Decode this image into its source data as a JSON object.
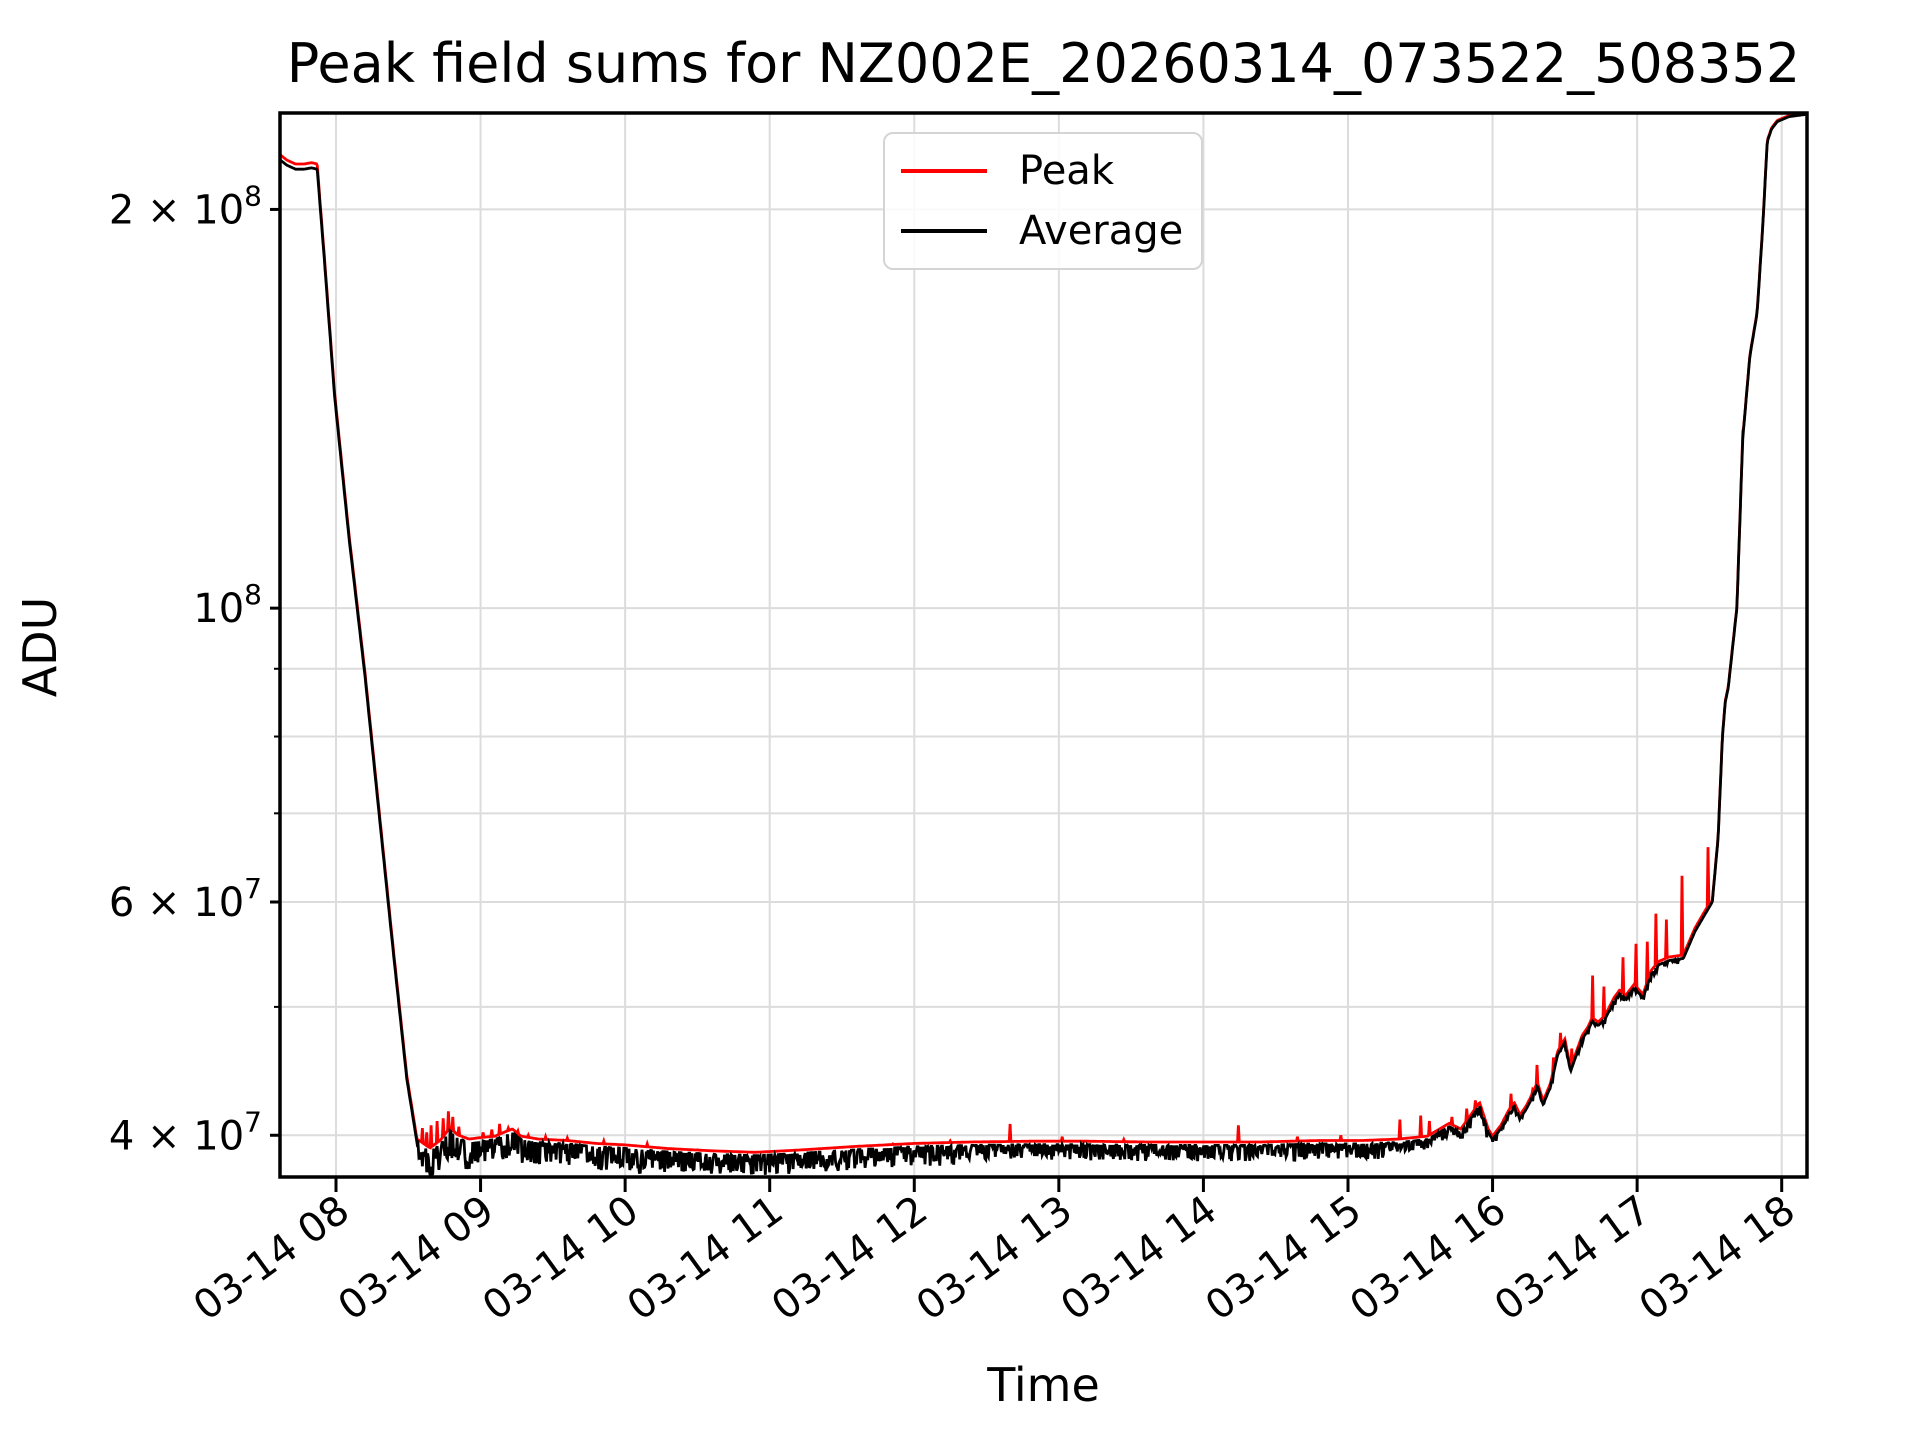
{
  "title": "Peak field sums for NZ002E_20260314_073522_508352",
  "xlabel": "Time",
  "ylabel": "ADU",
  "legend": {
    "entries": [
      {
        "label": "Peak",
        "color": "#ff0000"
      },
      {
        "label": "Average",
        "color": "#000000"
      }
    ]
  },
  "colors": {
    "peak": "#ff0000",
    "average": "#000000",
    "grid": "#dcdcdc",
    "spine": "#000000",
    "background": "#ffffff"
  },
  "chart_data": {
    "type": "line",
    "title": "Peak field sums for NZ002E_20260314_073522_508352",
    "xlabel": "Time",
    "ylabel": "ADU",
    "y_scale": "log",
    "grid": true,
    "legend_position": "upper center",
    "xlim": [
      7.6127,
      18.175
    ],
    "ylim": [
      37200000.0,
      236500000.0
    ],
    "x_ticks": [
      {
        "t": 8,
        "label": "03-14 08"
      },
      {
        "t": 9,
        "label": "03-14 09"
      },
      {
        "t": 10,
        "label": "03-14 10"
      },
      {
        "t": 11,
        "label": "03-14 11"
      },
      {
        "t": 12,
        "label": "03-14 12"
      },
      {
        "t": 13,
        "label": "03-14 13"
      },
      {
        "t": 14,
        "label": "03-14 14"
      },
      {
        "t": 15,
        "label": "03-14 15"
      },
      {
        "t": 16,
        "label": "03-14 16"
      },
      {
        "t": 17,
        "label": "03-14 17"
      },
      {
        "t": 18,
        "label": "03-14 18"
      }
    ],
    "y_ticks": [
      {
        "v": 40000000.0,
        "base": "4 × 10",
        "exp": "7"
      },
      {
        "v": 50000000.0,
        "base": null,
        "exp": null
      },
      {
        "v": 60000000.0,
        "base": "6 × 10",
        "exp": "7"
      },
      {
        "v": 70000000.0,
        "base": null,
        "exp": null
      },
      {
        "v": 80000000.0,
        "base": null,
        "exp": null
      },
      {
        "v": 90000000.0,
        "base": null,
        "exp": null
      },
      {
        "v": 100000000.0,
        "base": "10",
        "exp": "8"
      },
      {
        "v": 200000000.0,
        "base": "2 × 10",
        "exp": "8"
      }
    ],
    "series": [
      {
        "name": "Peak",
        "color": "#ff0000"
      },
      {
        "name": "Average",
        "color": "#000000"
      }
    ],
    "average_anchors": [
      [
        7.613,
        218000000.0
      ],
      [
        7.66,
        216000000.0
      ],
      [
        7.72,
        214500000.0
      ],
      [
        7.78,
        214500000.0
      ],
      [
        7.83,
        215000000.0
      ],
      [
        7.87,
        214500000.0
      ],
      [
        7.92,
        183000000.0
      ],
      [
        7.99,
        144600000.0
      ],
      [
        8.09,
        113000000.0
      ],
      [
        8.2,
        89000000.0
      ],
      [
        8.3,
        69600000.0
      ],
      [
        8.4,
        54500000.0
      ],
      [
        8.49,
        44100000.0
      ],
      [
        8.56,
        39500000.0
      ],
      [
        8.65,
        38900000.0
      ],
      [
        8.72,
        39400000.0
      ],
      [
        8.79,
        40300000.0
      ],
      [
        8.84,
        39800000.0
      ],
      [
        8.92,
        39500000.0
      ],
      [
        9.0,
        39600000.0
      ],
      [
        9.1,
        39700000.0
      ],
      [
        9.17,
        40000000.0
      ],
      [
        9.22,
        40200000.0
      ],
      [
        9.28,
        39700000.0
      ],
      [
        9.4,
        39500000.0
      ],
      [
        9.6,
        39400000.0
      ],
      [
        9.8,
        39200000.0
      ],
      [
        10.0,
        39100000.0
      ],
      [
        10.3,
        38850000.0
      ],
      [
        10.6,
        38700000.0
      ],
      [
        10.9,
        38600000.0
      ],
      [
        11.2,
        38750000.0
      ],
      [
        11.6,
        39000000.0
      ],
      [
        12.0,
        39200000.0
      ],
      [
        12.4,
        39300000.0
      ],
      [
        12.8,
        39350000.0
      ],
      [
        13.2,
        39350000.0
      ],
      [
        13.6,
        39300000.0
      ],
      [
        14.0,
        39300000.0
      ],
      [
        14.4,
        39300000.0
      ],
      [
        14.8,
        39400000.0
      ],
      [
        15.1,
        39400000.0
      ],
      [
        15.35,
        39500000.0
      ],
      [
        15.55,
        39700000.0
      ],
      [
        15.7,
        40600000.0
      ],
      [
        15.78,
        40200000.0
      ],
      [
        15.85,
        41200000.0
      ],
      [
        15.91,
        42100000.0
      ],
      [
        15.97,
        40200000.0
      ],
      [
        16.0,
        39700000.0
      ],
      [
        16.06,
        40500000.0
      ],
      [
        16.11,
        41500000.0
      ],
      [
        16.15,
        42100000.0
      ],
      [
        16.19,
        41200000.0
      ],
      [
        16.23,
        41800000.0
      ],
      [
        16.26,
        42400000.0
      ],
      [
        16.31,
        43600000.0
      ],
      [
        16.35,
        42200000.0
      ],
      [
        16.4,
        43500000.0
      ],
      [
        16.45,
        46000000.0
      ],
      [
        16.5,
        47000000.0
      ],
      [
        16.54,
        44700000.0
      ],
      [
        16.58,
        46000000.0
      ],
      [
        16.62,
        47300000.0
      ],
      [
        16.66,
        48000000.0
      ],
      [
        16.69,
        48800000.0
      ],
      [
        16.73,
        48400000.0
      ],
      [
        16.78,
        49000000.0
      ],
      [
        16.84,
        50500000.0
      ],
      [
        16.88,
        51200000.0
      ],
      [
        16.92,
        50700000.0
      ],
      [
        16.98,
        51700000.0
      ],
      [
        17.04,
        50800000.0
      ],
      [
        17.1,
        53000000.0
      ],
      [
        17.15,
        53800000.0
      ],
      [
        17.22,
        54200000.0
      ],
      [
        17.32,
        54400000.0
      ],
      [
        17.4,
        57000000.0
      ],
      [
        17.46,
        58500000.0
      ],
      [
        17.52,
        60000000.0
      ],
      [
        17.56,
        67000000.0
      ],
      [
        17.59,
        80000000.0
      ],
      [
        17.61,
        85000000.0
      ],
      [
        17.63,
        87000000.0
      ],
      [
        17.69,
        100000000.0
      ],
      [
        17.73,
        134000000.0
      ],
      [
        17.78,
        155000000.0
      ],
      [
        17.83,
        167000000.0
      ],
      [
        17.87,
        195000000.0
      ],
      [
        17.9,
        225000000.0
      ],
      [
        17.93,
        230000000.0
      ],
      [
        17.97,
        233000000.0
      ],
      [
        18.05,
        235000000.0
      ],
      [
        18.175,
        236000000.0
      ]
    ],
    "peak": {
      "start_factor": 1.009,
      "base_factor": 1.006,
      "end_factor": 1.002,
      "start_t": 7.88,
      "end_t": 17.5,
      "spikes": [
        [
          8.6,
          40500000.0
        ],
        [
          8.63,
          40200000.0
        ],
        [
          8.66,
          40700000.0
        ],
        [
          8.7,
          41000000.0
        ],
        [
          8.74,
          41200000.0
        ],
        [
          8.78,
          41700000.0
        ],
        [
          8.81,
          41300000.0
        ],
        [
          8.85,
          40600000.0
        ],
        [
          9.02,
          40200000.0
        ],
        [
          9.08,
          40400000.0
        ],
        [
          9.13,
          40800000.0
        ],
        [
          9.19,
          40500000.0
        ],
        [
          9.26,
          40300000.0
        ],
        [
          9.33,
          40000000.0
        ],
        [
          9.45,
          39900000.0
        ],
        [
          9.6,
          39800000.0
        ],
        [
          9.85,
          39600000.0
        ],
        [
          10.15,
          39400000.0
        ],
        [
          10.5,
          39000000.0
        ],
        [
          10.75,
          38800000.0
        ],
        [
          11.05,
          38800000.0
        ],
        [
          11.45,
          39100000.0
        ],
        [
          11.85,
          39400000.0
        ],
        [
          12.25,
          39600000.0
        ],
        [
          12.66,
          40800000.0
        ],
        [
          13.02,
          39900000.0
        ],
        [
          13.45,
          39700000.0
        ],
        [
          14.24,
          40700000.0
        ],
        [
          14.65,
          39900000.0
        ],
        [
          14.95,
          40000000.0
        ],
        [
          15.36,
          41100000.0
        ],
        [
          15.5,
          41400000.0
        ],
        [
          15.56,
          41000000.0
        ],
        [
          15.72,
          41300000.0
        ],
        [
          15.82,
          41900000.0
        ],
        [
          15.88,
          42500000.0
        ],
        [
          16.13,
          43000000.0
        ],
        [
          16.28,
          43300000.0
        ],
        [
          16.31,
          45200000.0
        ],
        [
          16.42,
          45800000.0
        ],
        [
          16.47,
          47800000.0
        ],
        [
          16.55,
          46500000.0
        ],
        [
          16.69,
          52800000.0
        ],
        [
          16.77,
          51800000.0
        ],
        [
          16.9,
          54500000.0
        ],
        [
          16.99,
          55800000.0
        ],
        [
          17.07,
          56000000.0
        ],
        [
          17.13,
          58800000.0
        ],
        [
          17.2,
          58200000.0
        ],
        [
          17.31,
          62800000.0
        ],
        [
          17.49,
          66000000.0
        ],
        [
          17.73,
          136000000.0
        ]
      ]
    },
    "noise_regions": [
      {
        "t0": 8.56,
        "t1": 9.0,
        "amp": 0.045,
        "density": 0.75
      },
      {
        "t0": 9.0,
        "t1": 10.3,
        "amp": 0.04,
        "density": 0.7
      },
      {
        "t0": 10.3,
        "t1": 12.3,
        "amp": 0.034,
        "density": 0.7
      },
      {
        "t0": 12.3,
        "t1": 15.25,
        "amp": 0.027,
        "density": 0.6
      },
      {
        "t0": 15.25,
        "t1": 16.1,
        "amp": 0.017,
        "density": 0.5
      },
      {
        "t0": 16.1,
        "t1": 17.3,
        "amp": 0.009,
        "density": 0.4
      }
    ],
    "noise_seed": 7
  }
}
